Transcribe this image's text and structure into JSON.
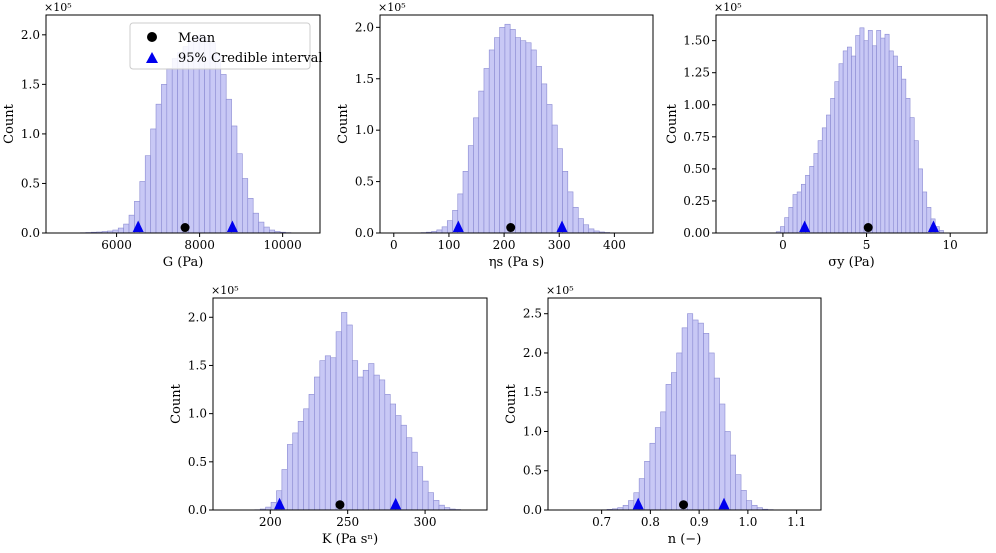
{
  "legend": {
    "mean_label": "Mean",
    "ci_label": "95% Credible interval"
  },
  "colors": {
    "bar_fill": "#c8c8f5",
    "bar_edge": "#8a8ad2",
    "mean_marker": "#000000",
    "ci_marker": "#0000ee"
  },
  "chart_data": [
    {
      "type": "histogram",
      "xlabel": "G (Pa)",
      "ylabel": "Count",
      "multiplier_label": "×10⁵",
      "xlim": [
        4300,
        10900
      ],
      "ylim": [
        0,
        2.2
      ],
      "xticks": [
        6000,
        8000,
        10000
      ],
      "xtick_labels": [
        "6000",
        "8000",
        "10000"
      ],
      "yticks": [
        0,
        0.5,
        1.0,
        1.5,
        2.0
      ],
      "ytick_labels": [
        "0.0",
        "0.5",
        "1.0",
        "1.5",
        "2.0"
      ],
      "bin_start": 5000,
      "bin_width": 130,
      "counts": [
        0.002,
        0.003,
        0.005,
        0.008,
        0.01,
        0.015,
        0.02,
        0.03,
        0.05,
        0.09,
        0.18,
        0.32,
        0.52,
        0.78,
        1.05,
        1.3,
        1.5,
        1.66,
        1.76,
        1.82,
        1.88,
        1.94,
        1.98,
        2.0,
        1.97,
        1.92,
        1.8,
        1.6,
        1.35,
        1.08,
        0.8,
        0.55,
        0.35,
        0.2,
        0.11,
        0.06,
        0.03,
        0.015,
        0.008,
        0.004,
        0.002,
        0.001
      ],
      "mean": 7650,
      "ci": [
        6520,
        8790
      ],
      "legend_position": "top-right"
    },
    {
      "type": "histogram",
      "xlabel": "ηs (Pa s)",
      "ylabel": "Count",
      "multiplier_label": "×10⁵",
      "xlim": [
        -25,
        470
      ],
      "ylim": [
        0,
        2.12
      ],
      "xticks": [
        0,
        100,
        200,
        300,
        400
      ],
      "xtick_labels": [
        "0",
        "100",
        "200",
        "300",
        "400"
      ],
      "yticks": [
        0,
        0.5,
        1.0,
        1.5,
        2.0
      ],
      "ytick_labels": [
        "0.0",
        "0.5",
        "1.0",
        "1.5",
        "2.0"
      ],
      "bin_start": 40,
      "bin_width": 9.5,
      "counts": [
        0.002,
        0.004,
        0.008,
        0.015,
        0.03,
        0.06,
        0.12,
        0.22,
        0.38,
        0.6,
        0.85,
        1.12,
        1.38,
        1.6,
        1.78,
        1.9,
        2.0,
        2.03,
        1.98,
        1.9,
        1.87,
        1.85,
        1.78,
        1.62,
        1.45,
        1.25,
        1.05,
        0.82,
        0.6,
        0.4,
        0.25,
        0.14,
        0.08,
        0.04,
        0.02,
        0.01,
        0.005,
        0.002
      ],
      "mean": 212,
      "ci": [
        117,
        305
      ]
    },
    {
      "type": "histogram",
      "xlabel": "σy (Pa)",
      "ylabel": "Count",
      "multiplier_label": "×10⁵",
      "xlim": [
        -4,
        12.2
      ],
      "ylim": [
        0,
        1.7
      ],
      "xticks": [
        0,
        5,
        10
      ],
      "xtick_labels": [
        "0",
        "5",
        "10"
      ],
      "yticks": [
        0,
        0.25,
        0.5,
        0.75,
        1.0,
        1.25,
        1.5
      ],
      "ytick_labels": [
        "0.00",
        "0.25",
        "0.50",
        "0.75",
        "1.00",
        "1.25",
        "1.50"
      ],
      "bin_start": -0.4,
      "bin_width": 0.25,
      "counts": [
        0.01,
        0.05,
        0.12,
        0.2,
        0.3,
        0.32,
        0.38,
        0.45,
        0.52,
        0.62,
        0.72,
        0.82,
        0.92,
        1.05,
        1.18,
        1.32,
        1.42,
        1.45,
        1.38,
        1.54,
        1.6,
        1.5,
        1.58,
        1.46,
        1.58,
        1.52,
        1.55,
        1.42,
        1.38,
        1.3,
        1.2,
        1.05,
        0.9,
        0.72,
        0.5,
        0.32,
        0.2,
        0.11,
        0.05,
        0.02
      ],
      "mean": 5.1,
      "ci": [
        1.3,
        9.0
      ]
    },
    {
      "type": "histogram",
      "xlabel": "K (Pa sⁿ)",
      "ylabel": "Count",
      "multiplier_label": "×10⁵",
      "xlim": [
        163,
        340
      ],
      "ylim": [
        0,
        2.2
      ],
      "xticks": [
        200,
        250,
        300
      ],
      "xtick_labels": [
        "200",
        "250",
        "300"
      ],
      "yticks": [
        0,
        0.5,
        1.0,
        1.5,
        2.0
      ],
      "ytick_labels": [
        "0.0",
        "0.5",
        "1.0",
        "1.5",
        "2.0"
      ],
      "bin_start": 190,
      "bin_width": 3.5,
      "counts": [
        0.003,
        0.01,
        0.03,
        0.08,
        0.2,
        0.42,
        0.68,
        0.8,
        0.92,
        1.05,
        1.2,
        1.38,
        1.55,
        1.6,
        1.58,
        1.85,
        2.05,
        1.92,
        1.55,
        1.38,
        1.45,
        1.52,
        1.4,
        1.35,
        1.2,
        1.1,
        0.98,
        0.88,
        0.75,
        0.6,
        0.45,
        0.3,
        0.18,
        0.1,
        0.05,
        0.025,
        0.01,
        0.005
      ],
      "mean": 245,
      "ci": [
        206,
        281
      ]
    },
    {
      "type": "histogram",
      "xlabel": "n (−)",
      "ylabel": "Count",
      "multiplier_label": "×10⁵",
      "xlim": [
        0.59,
        1.15
      ],
      "ylim": [
        0,
        2.7
      ],
      "xticks": [
        0.7,
        0.8,
        0.9,
        1.0,
        1.1
      ],
      "xtick_labels": [
        "0.7",
        "0.8",
        "0.9",
        "1.0",
        "1.1"
      ],
      "yticks": [
        0,
        0.5,
        1.0,
        1.5,
        2.0,
        2.5
      ],
      "ytick_labels": [
        "0.0",
        "0.5",
        "1.0",
        "1.5",
        "2.0",
        "2.5"
      ],
      "bin_start": 0.7,
      "bin_width": 0.011,
      "counts": [
        0.003,
        0.008,
        0.015,
        0.03,
        0.06,
        0.12,
        0.22,
        0.4,
        0.62,
        0.85,
        1.05,
        1.25,
        1.6,
        1.75,
        2.0,
        2.32,
        2.5,
        2.42,
        2.38,
        2.25,
        2.0,
        1.68,
        1.35,
        1.0,
        0.7,
        0.45,
        0.25,
        0.12,
        0.06,
        0.03,
        0.01,
        0.005
      ],
      "mean": 0.868,
      "ci": [
        0.775,
        0.951
      ]
    }
  ]
}
